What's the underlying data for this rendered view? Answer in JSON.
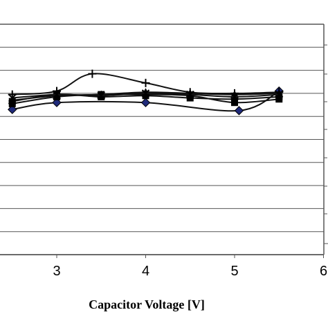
{
  "chart_data": {
    "type": "line",
    "title": "",
    "xlabel": "Capacitor Voltage [V]",
    "ylabel": "",
    "xlim": [
      2.5,
      6
    ],
    "x_ticks": [
      3,
      4,
      5,
      6
    ],
    "x_tick_labels": [
      "3",
      "4",
      "5",
      "6"
    ],
    "ylim": [
      0,
      10
    ],
    "grid": "horizontal",
    "series": [
      {
        "marker": "diamond",
        "color": "#1f2a7a",
        "x": [
          2.5,
          3.0,
          4.0,
          5.05,
          5.5
        ],
        "y": [
          6.3,
          6.6,
          6.6,
          6.25,
          7.1
        ]
      },
      {
        "marker": "square",
        "color": "#000000",
        "x": [
          2.5,
          3.0,
          3.5,
          4.0,
          4.5,
          5.0,
          5.5
        ],
        "y": [
          6.65,
          6.95,
          6.85,
          6.9,
          6.8,
          6.75,
          6.85
        ]
      },
      {
        "marker": "square",
        "color": "#000000",
        "x": [
          2.5,
          3.0,
          3.5,
          4.0,
          4.5,
          5.0,
          5.5
        ],
        "y": [
          6.55,
          6.85,
          6.95,
          6.95,
          6.9,
          6.6,
          6.75
        ]
      },
      {
        "marker": "plus",
        "color": "#000000",
        "x": [
          2.5,
          3.0,
          3.4,
          4.0,
          4.5,
          5.0,
          5.5
        ],
        "y": [
          6.95,
          7.1,
          7.85,
          7.45,
          7.05,
          7.0,
          7.05
        ]
      },
      {
        "marker": "triangle",
        "color": "#000000",
        "x": [
          2.5,
          3.0,
          3.5,
          4.0,
          4.5,
          5.0,
          5.5
        ],
        "y": [
          6.7,
          6.9,
          6.95,
          7.05,
          7.0,
          6.95,
          7.0
        ]
      },
      {
        "marker": "x",
        "color": "#000000",
        "x": [
          2.5,
          3.0,
          3.5,
          4.0,
          4.5,
          5.0,
          5.5
        ],
        "y": [
          6.8,
          6.95,
          6.9,
          7.0,
          6.95,
          6.85,
          6.95
        ]
      }
    ]
  }
}
